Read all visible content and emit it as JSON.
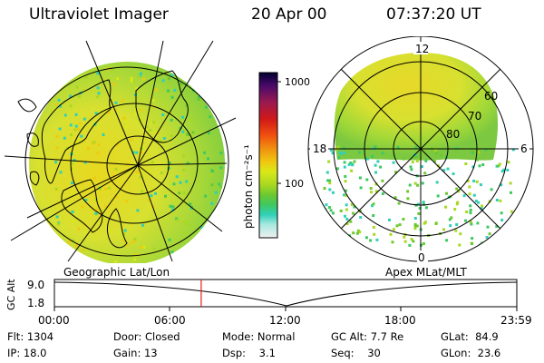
{
  "header": {
    "title": "Ultraviolet Imager",
    "date": "20 Apr 00",
    "time": "07:37:20 UT"
  },
  "colorbar": {
    "label": "photon cm⁻²s⁻¹",
    "ticks": [
      "1000",
      "100"
    ],
    "colors": [
      "#000030",
      "#4a0a6a",
      "#9a1a50",
      "#d01818",
      "#f05010",
      "#f09010",
      "#f0c810",
      "#d8e818",
      "#a8d820",
      "#6cc830",
      "#40c860",
      "#30d0b8",
      "#a8e8e0",
      "#f0f0f0"
    ]
  },
  "left_map": {
    "caption": "Geographic Lat/Lon"
  },
  "right_map": {
    "caption": "Apex MLat/MLT",
    "lat_labels": [
      "60",
      "70",
      "80"
    ],
    "mlt_labels": {
      "top": "12",
      "left": "18",
      "right": "6",
      "bottom": "0"
    }
  },
  "timeline": {
    "ylabel": "GC Alt",
    "y_ticks": [
      "9.0",
      "1.8"
    ],
    "x_ticks": [
      "00:00",
      "06:00",
      "12:00",
      "18:00",
      "23:59"
    ],
    "marker_time": "07:37",
    "marker_color": "#e02020"
  },
  "info": {
    "flt_label": "Flt:",
    "flt_value": "1304",
    "ip_label": "IP:",
    "ip_value": "18.0",
    "door_label": "Door:",
    "door_value": "Closed",
    "gain_label": "Gain:",
    "gain_value": "13",
    "mode_label": "Mode:",
    "mode_value": "Normal",
    "dsp_label": "Dsp:",
    "dsp_value": "3.1",
    "gcalt_label": "GC Alt:",
    "gcalt_value": "7.7 Re",
    "seq_label": "Seq:",
    "seq_value": "30",
    "glat_label": "GLat:",
    "glat_value": "84.9",
    "glon_label": "GLon:",
    "glon_value": "23.6"
  }
}
